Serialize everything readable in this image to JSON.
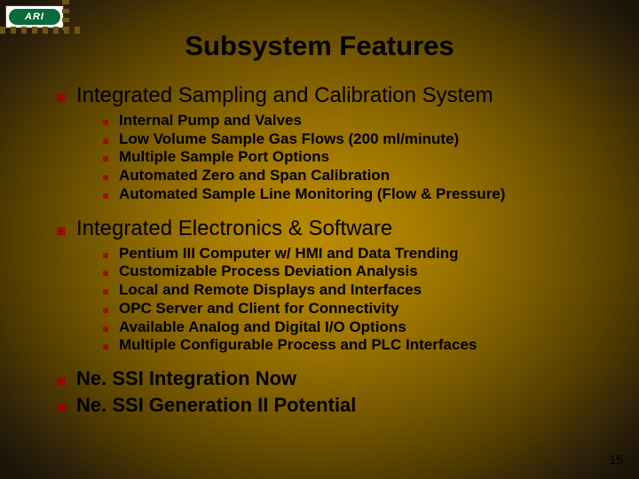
{
  "logo": {
    "text": "ARI"
  },
  "title": "Subsystem Features",
  "sections": [
    {
      "heading": "Integrated Sampling and Calibration System",
      "items": [
        "Internal Pump and Valves",
        "Low Volume Sample Gas Flows (200 ml/minute)",
        "Multiple Sample Port Options",
        "Automated Zero and Span Calibration",
        "Automated  Sample Line Monitoring (Flow & Pressure)"
      ]
    },
    {
      "heading": "Integrated Electronics & Software",
      "items": [
        "Pentium III Computer w/ HMI and Data Trending",
        "Customizable Process Deviation Analysis",
        "Local and Remote Displays and Interfaces",
        "OPC Server and Client for Connectivity",
        "Available Analog and Digital I/O Options",
        "Multiple Configurable Process and PLC Interfaces"
      ]
    }
  ],
  "standalone": [
    "Ne. SSI Integration Now",
    "Ne. SSI Generation II Potential"
  ],
  "page_number": "15",
  "colors": {
    "bullet": "#a00000",
    "text": "#000000",
    "logo_bg": "#0a6b3a"
  }
}
